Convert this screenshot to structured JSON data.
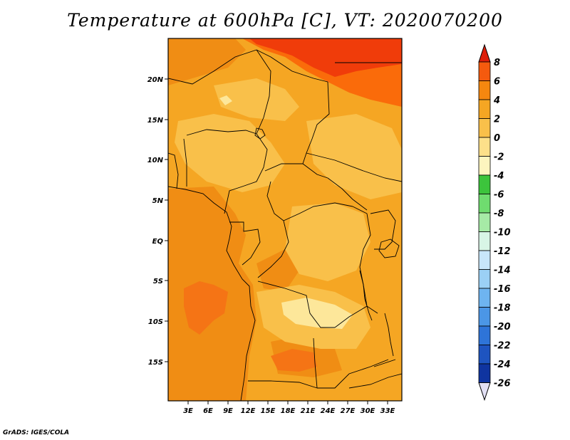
{
  "title": "Temperature at 600hPa [C], VT: 2020070200",
  "credit": "GrADS: IGES/COLA",
  "map": {
    "lat_labels": [
      "20N",
      "15N",
      "10N",
      "5N",
      "EQ",
      "5S",
      "10S",
      "15S"
    ],
    "lon_labels": [
      "3E",
      "6E",
      "9E",
      "12E",
      "15E",
      "18E",
      "21E",
      "24E",
      "27E",
      "30E",
      "33E"
    ],
    "field_colors": {
      "base": "#f5a623",
      "dark": "#f08d14",
      "warm": "#fa6b0a",
      "hot": "#f03c0a",
      "light": "#f9c04a",
      "pale": "#fde79a"
    }
  },
  "colorbar": {
    "labels": [
      "8",
      "6",
      "4",
      "2",
      "0",
      "-2",
      "-4",
      "-6",
      "-8",
      "-10",
      "-12",
      "-14",
      "-16",
      "-18",
      "-20",
      "-22",
      "-24",
      "-26"
    ],
    "colors": [
      "#e6200d",
      "#f55a0e",
      "#f5870f",
      "#f5a623",
      "#f9c04a",
      "#fde08a",
      "#fdf5bf",
      "#3cc43c",
      "#6fdc6f",
      "#a6eaa6",
      "#d8f5e6",
      "#c8e6fa",
      "#9bd0f5",
      "#6eb4f0",
      "#4b96e6",
      "#2e74d8",
      "#1e54c0",
      "#0f34a0",
      "#0a1670"
    ],
    "top_color": "#dd1e0a",
    "bottom_color": "#e2e0f4"
  }
}
